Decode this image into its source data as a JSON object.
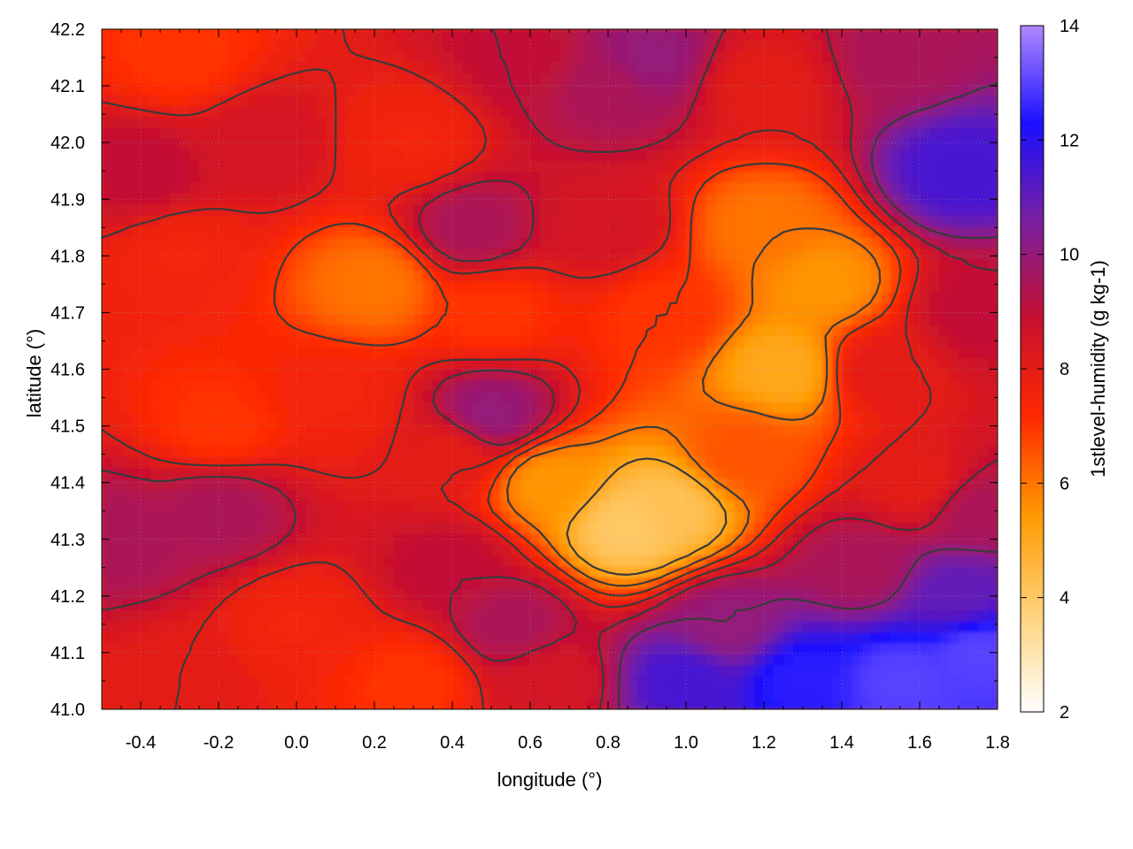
{
  "chart_data": {
    "type": "heatmap",
    "title": "",
    "xlabel": "longitude (°)",
    "ylabel": "latitude (°)",
    "colorbar_label": "1stlevel-humidity (g kg-1)",
    "xlim": [
      -0.5,
      1.8
    ],
    "ylim": [
      41.0,
      42.2
    ],
    "x_ticks": [
      "-0.4",
      "-0.2",
      "0.0",
      "0.2",
      "0.4",
      "0.6",
      "0.8",
      "1.0",
      "1.2",
      "1.4",
      "1.6",
      "1.8"
    ],
    "y_ticks": [
      "41.0",
      "41.1",
      "41.2",
      "41.3",
      "41.4",
      "41.5",
      "41.6",
      "41.7",
      "41.8",
      "41.9",
      "42.0",
      "42.1",
      "42.2"
    ],
    "colorbar_range": [
      2,
      14
    ],
    "colorbar_ticks": [
      "2",
      "4",
      "6",
      "8",
      "10",
      "12",
      "14"
    ],
    "colormap": [
      "#ffffff",
      "#ffd27a",
      "#ff9a00",
      "#ff2a00",
      "#c8102e",
      "#7a1fa0",
      "#1a10ff",
      "#b088ff"
    ],
    "grid": true,
    "contours": true,
    "humidity_field": [
      {
        "lon": 0.85,
        "lat": 41.32,
        "value": 4.0
      },
      {
        "lon": 0.95,
        "lat": 41.35,
        "value": 4.2
      },
      {
        "lon": 1.25,
        "lat": 41.6,
        "value": 5.0
      },
      {
        "lon": 1.35,
        "lat": 41.75,
        "value": 5.5
      },
      {
        "lon": 1.2,
        "lat": 41.85,
        "value": 6.0
      },
      {
        "lon": 0.65,
        "lat": 41.4,
        "value": 5.5
      },
      {
        "lon": 0.2,
        "lat": 41.75,
        "value": 6.0
      },
      {
        "lon": 0.5,
        "lat": 41.7,
        "value": 7.0
      },
      {
        "lon": 0.4,
        "lat": 41.45,
        "value": 8.0
      },
      {
        "lon": 0.1,
        "lat": 41.55,
        "value": 7.5
      },
      {
        "lon": -0.2,
        "lat": 41.5,
        "value": 7.0
      },
      {
        "lon": -0.3,
        "lat": 41.8,
        "value": 7.5
      },
      {
        "lon": -0.3,
        "lat": 42.15,
        "value": 7.0
      },
      {
        "lon": -0.4,
        "lat": 41.95,
        "value": 9.0
      },
      {
        "lon": -0.1,
        "lat": 42.0,
        "value": 8.5
      },
      {
        "lon": 0.3,
        "lat": 42.0,
        "value": 7.5
      },
      {
        "lon": 0.45,
        "lat": 41.85,
        "value": 9.5
      },
      {
        "lon": 0.8,
        "lat": 42.1,
        "value": 9.5
      },
      {
        "lon": 0.9,
        "lat": 42.15,
        "value": 10.0
      },
      {
        "lon": 0.6,
        "lat": 42.15,
        "value": 9.0
      },
      {
        "lon": 1.2,
        "lat": 42.1,
        "value": 8.0
      },
      {
        "lon": 1.55,
        "lat": 42.15,
        "value": 9.5
      },
      {
        "lon": 1.7,
        "lat": 41.95,
        "value": 11.5
      },
      {
        "lon": 1.75,
        "lat": 41.7,
        "value": 9.0
      },
      {
        "lon": 1.5,
        "lat": 41.6,
        "value": 8.0
      },
      {
        "lon": 1.6,
        "lat": 41.4,
        "value": 8.0
      },
      {
        "lon": 1.75,
        "lat": 41.35,
        "value": 9.5
      },
      {
        "lon": -0.45,
        "lat": 41.3,
        "value": 9.5
      },
      {
        "lon": -0.2,
        "lat": 41.35,
        "value": 9.5
      },
      {
        "lon": 0.5,
        "lat": 41.52,
        "value": 10.0
      },
      {
        "lon": 0.4,
        "lat": 41.25,
        "value": 9.0
      },
      {
        "lon": 0.55,
        "lat": 41.15,
        "value": 9.5
      },
      {
        "lon": 0.0,
        "lat": 41.15,
        "value": 7.5
      },
      {
        "lon": -0.3,
        "lat": 41.05,
        "value": 8.0
      },
      {
        "lon": 0.3,
        "lat": 41.05,
        "value": 7.0
      },
      {
        "lon": 0.65,
        "lat": 41.05,
        "value": 8.5
      },
      {
        "lon": 1.1,
        "lat": 41.15,
        "value": 10.0
      },
      {
        "lon": 1.3,
        "lat": 41.05,
        "value": 12.5
      },
      {
        "lon": 1.55,
        "lat": 41.05,
        "value": 13.0
      },
      {
        "lon": 1.75,
        "lat": 41.1,
        "value": 13.0
      },
      {
        "lon": 1.0,
        "lat": 41.05,
        "value": 11.5
      },
      {
        "lon": 1.45,
        "lat": 41.25,
        "value": 9.5
      },
      {
        "lon": 1.7,
        "lat": 41.2,
        "value": 11.0
      },
      {
        "lon": 1.15,
        "lat": 41.45,
        "value": 6.5
      },
      {
        "lon": 0.95,
        "lat": 41.7,
        "value": 7.0
      },
      {
        "lon": 0.8,
        "lat": 41.85,
        "value": 8.5
      }
    ]
  }
}
